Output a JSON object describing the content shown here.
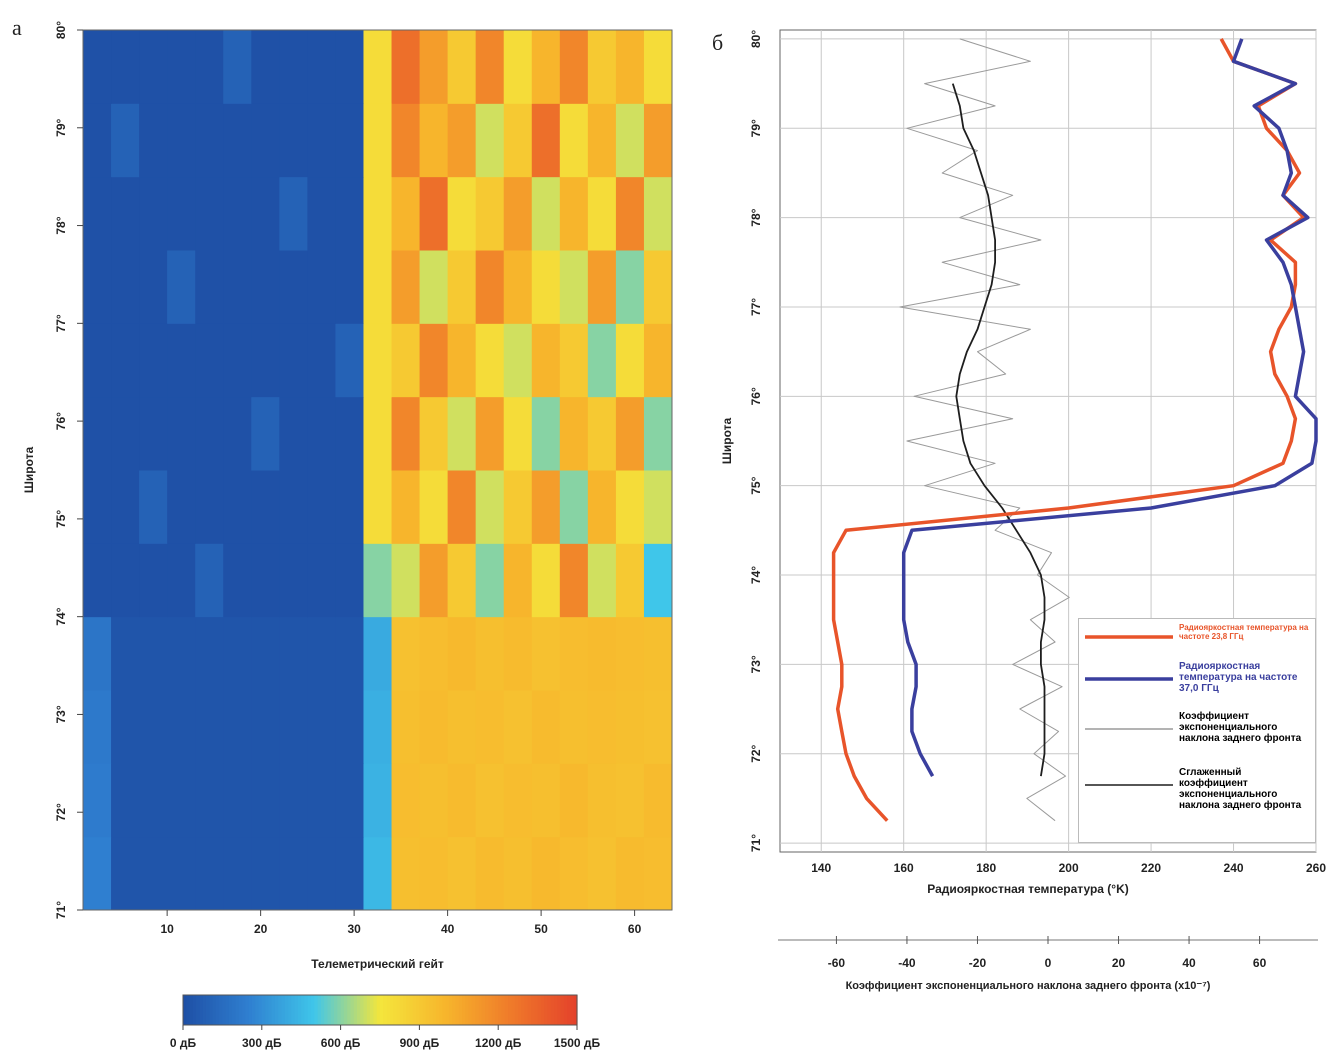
{
  "chart_data": [
    {
      "type": "heatmap",
      "label": "а",
      "x_label": "Телеметрический гейт",
      "y_label": "Широта",
      "xlim": [
        1,
        64
      ],
      "xticks": [
        10,
        20,
        30,
        40,
        50,
        60
      ],
      "ylim": [
        71,
        80
      ],
      "yticks": [
        {
          "value": 71,
          "label": "71°"
        },
        {
          "value": 72,
          "label": "72°"
        },
        {
          "value": 73,
          "label": "73°"
        },
        {
          "value": 74,
          "label": "74°"
        },
        {
          "value": 75,
          "label": "75°"
        },
        {
          "value": 76,
          "label": "76°"
        },
        {
          "value": 77,
          "label": "77°"
        },
        {
          "value": 78,
          "label": "78°"
        },
        {
          "value": 79,
          "label": "79°"
        },
        {
          "value": 80,
          "label": "80°"
        }
      ],
      "x": [
        2.5,
        5.5,
        8.5,
        11.5,
        14.5,
        17.5,
        20.5,
        23.5,
        26.5,
        29.5,
        32.5,
        35.5,
        38.5,
        41.5,
        44.5,
        47.5,
        50.5,
        53.5,
        56.5,
        59.5,
        62.5
      ],
      "y": [
        71.375,
        72.125,
        72.875,
        73.625,
        74.375,
        75.125,
        75.875,
        76.625,
        77.375,
        78.125,
        78.875,
        79.625
      ],
      "values": [
        [
          250,
          30,
          30,
          30,
          30,
          30,
          30,
          30,
          30,
          30,
          450,
          950,
          960,
          940,
          970,
          950,
          980,
          960,
          940,
          970,
          960
        ],
        [
          230,
          30,
          30,
          30,
          30,
          30,
          30,
          30,
          30,
          30,
          430,
          960,
          950,
          970,
          940,
          960,
          950,
          980,
          950,
          940,
          970
        ],
        [
          220,
          30,
          30,
          30,
          30,
          30,
          30,
          30,
          30,
          30,
          420,
          950,
          970,
          950,
          960,
          940,
          970,
          950,
          960,
          950,
          940
        ],
        [
          200,
          30,
          30,
          30,
          30,
          30,
          30,
          30,
          30,
          30,
          400,
          940,
          960,
          980,
          950,
          970,
          940,
          960,
          970,
          960,
          950
        ],
        [
          10,
          10,
          10,
          10,
          100,
          10,
          10,
          10,
          10,
          10,
          600,
          700,
          1100,
          900,
          600,
          1000,
          800,
          1200,
          700,
          900,
          500
        ],
        [
          10,
          10,
          100,
          10,
          10,
          10,
          10,
          10,
          10,
          10,
          800,
          1000,
          800,
          1200,
          700,
          900,
          1100,
          600,
          1000,
          800,
          700
        ],
        [
          10,
          10,
          10,
          10,
          10,
          10,
          100,
          10,
          10,
          10,
          800,
          1200,
          900,
          700,
          1100,
          800,
          600,
          1000,
          900,
          1100,
          600
        ],
        [
          10,
          10,
          10,
          10,
          10,
          10,
          10,
          10,
          10,
          100,
          800,
          900,
          1200,
          1000,
          800,
          700,
          1000,
          900,
          600,
          800,
          1000
        ],
        [
          10,
          10,
          10,
          100,
          10,
          10,
          10,
          10,
          10,
          10,
          800,
          1100,
          700,
          900,
          1200,
          1000,
          800,
          700,
          1100,
          600,
          900
        ],
        [
          10,
          10,
          10,
          10,
          10,
          10,
          10,
          100,
          10,
          10,
          800,
          1000,
          1300,
          800,
          900,
          1100,
          700,
          1000,
          800,
          1200,
          700
        ],
        [
          10,
          100,
          10,
          10,
          10,
          10,
          10,
          10,
          10,
          10,
          800,
          1200,
          1000,
          1100,
          700,
          900,
          1300,
          800,
          1000,
          700,
          1100
        ],
        [
          10,
          10,
          10,
          10,
          10,
          100,
          10,
          10,
          10,
          10,
          800,
          1300,
          1100,
          900,
          1200,
          800,
          1000,
          1200,
          900,
          1000,
          800
        ]
      ],
      "clim": [
        0,
        1500
      ],
      "colormap": [
        "#1e4fa5",
        "#2f7fd0",
        "#3fc6ea",
        "#f4e63c",
        "#f7b52c",
        "#ef7a2a",
        "#e4412b"
      ],
      "colorbar_ticks": [
        {
          "value": 0,
          "label": "0 дБ"
        },
        {
          "value": 300,
          "label": "300 дБ"
        },
        {
          "value": 600,
          "label": "600 дБ"
        },
        {
          "value": 900,
          "label": "900 дБ"
        },
        {
          "value": 1200,
          "label": "1200 дБ"
        },
        {
          "value": 1500,
          "label": "1500 дБ"
        }
      ]
    },
    {
      "type": "line",
      "label": "б",
      "x_label": "Радиояркостная температура (°K)",
      "y_label": "Широта",
      "x2_label": "Коэффициент экспоненциального наклона заднего фронта (x10⁻⁷)",
      "xlim": [
        130,
        260
      ],
      "xticks": [
        140,
        160,
        180,
        200,
        220,
        240,
        260
      ],
      "x2lim": [
        -76,
        76
      ],
      "x2ticks": [
        -60,
        -40,
        -20,
        0,
        20,
        40,
        60
      ],
      "ylim": [
        70.9,
        80.1
      ],
      "yticks": [
        {
          "value": 71,
          "label": "71°"
        },
        {
          "value": 72,
          "label": "72°"
        },
        {
          "value": 73,
          "label": "73°"
        },
        {
          "value": 74,
          "label": "74°"
        },
        {
          "value": 75,
          "label": "75°"
        },
        {
          "value": 76,
          "label": "76°"
        },
        {
          "value": 77,
          "label": "77°"
        },
        {
          "value": 78,
          "label": "78°"
        },
        {
          "value": 79,
          "label": "79°"
        },
        {
          "value": 80,
          "label": "80°"
        }
      ],
      "grid": true,
      "y": [
        71,
        71.25,
        71.5,
        71.75,
        72,
        72.25,
        72.5,
        72.75,
        73,
        73.25,
        73.5,
        73.75,
        74,
        74.25,
        74.5,
        74.75,
        75,
        75.25,
        75.5,
        75.75,
        76,
        76.25,
        76.5,
        76.75,
        77,
        77.25,
        77.5,
        77.75,
        78,
        78.25,
        78.5,
        78.75,
        79,
        79.25,
        79.5,
        79.75,
        80
      ],
      "series": [
        {
          "name": "Радиояркостная температура на частоте 23,8 ГГц",
          "color": "#e8542a",
          "values": [
            null,
            156,
            151,
            148,
            146,
            145,
            144,
            145,
            145,
            144,
            143,
            143,
            143,
            143,
            146,
            200,
            240,
            252,
            254,
            255,
            253,
            250,
            249,
            251,
            254,
            255,
            255,
            249,
            257,
            252,
            256,
            253,
            248,
            246,
            255,
            240,
            237
          ]
        },
        {
          "name": "Радиояркостная температура на частоте 37,0 ГГц",
          "color": "#3a3f9e",
          "values": [
            null,
            null,
            null,
            167,
            164,
            162,
            162,
            163,
            163,
            161,
            160,
            160,
            160,
            160,
            162,
            220,
            250,
            259,
            260,
            260,
            255,
            256,
            257,
            256,
            255,
            254,
            252,
            248,
            258,
            252,
            254,
            253,
            251,
            245,
            255,
            240,
            242
          ]
        },
        {
          "name": "Коэффициент экспоненциального наклона заднего фронта",
          "color": "#9a9a9a",
          "axis": "x2",
          "values": [
            null,
            2,
            -6,
            5,
            -4,
            3,
            -8,
            4,
            -10,
            2,
            -5,
            6,
            -3,
            1,
            -15,
            -8,
            -35,
            -15,
            -40,
            -10,
            -38,
            -12,
            -20,
            -5,
            -42,
            -8,
            -30,
            -2,
            -25,
            -10,
            -30,
            -20,
            -40,
            -15,
            -35,
            -5,
            -25
          ]
        },
        {
          "name": "Сглаженный коэффициент экспоненциального наклона заднего фронта",
          "color": "#1e1e1e",
          "axis": "x2",
          "values": [
            null,
            null,
            null,
            -2,
            -1,
            -1,
            -1,
            -1,
            -2,
            -2,
            -1,
            -1,
            -2,
            -5,
            -9,
            -13,
            -18,
            -22,
            -24,
            -25,
            -26,
            -25,
            -23,
            -20,
            -18,
            -16,
            -15,
            -15,
            -16,
            -17,
            -19,
            -21,
            -24,
            -25,
            -27,
            null,
            null
          ]
        }
      ]
    }
  ]
}
